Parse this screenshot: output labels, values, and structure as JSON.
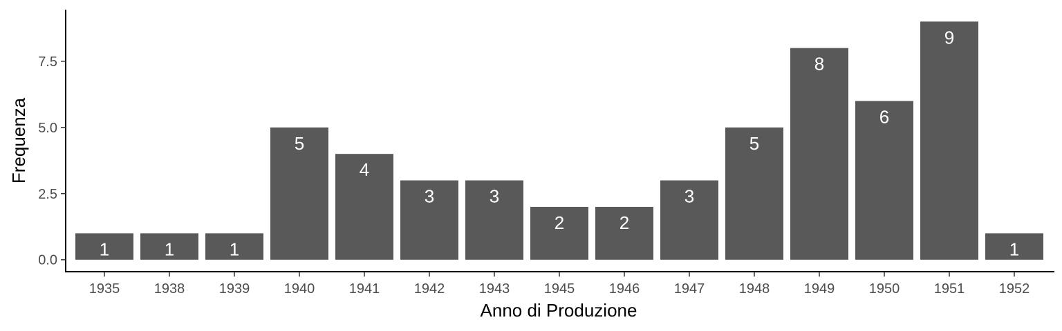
{
  "chart_data": {
    "type": "bar",
    "xlabel": "Anno di Produzione",
    "ylabel": "Frequenza",
    "categories": [
      "1935",
      "1938",
      "1939",
      "1940",
      "1941",
      "1942",
      "1943",
      "1945",
      "1946",
      "1947",
      "1948",
      "1949",
      "1950",
      "1951",
      "1952"
    ],
    "values": [
      1,
      1,
      1,
      5,
      4,
      3,
      3,
      2,
      2,
      3,
      5,
      8,
      6,
      9,
      1
    ],
    "data_labels": [
      "1",
      "1",
      "1",
      "5",
      "4",
      "3",
      "3",
      "2",
      "2",
      "3",
      "5",
      "8",
      "6",
      "9",
      "1"
    ],
    "yticks": [
      "0.0",
      "2.5",
      "5.0",
      "7.5"
    ],
    "ytick_values": [
      0,
      2.5,
      5,
      7.5
    ],
    "ylim": [
      -0.45,
      9.45
    ],
    "grid": false,
    "bar_color": "#595959",
    "label_color": "#ffffff"
  }
}
